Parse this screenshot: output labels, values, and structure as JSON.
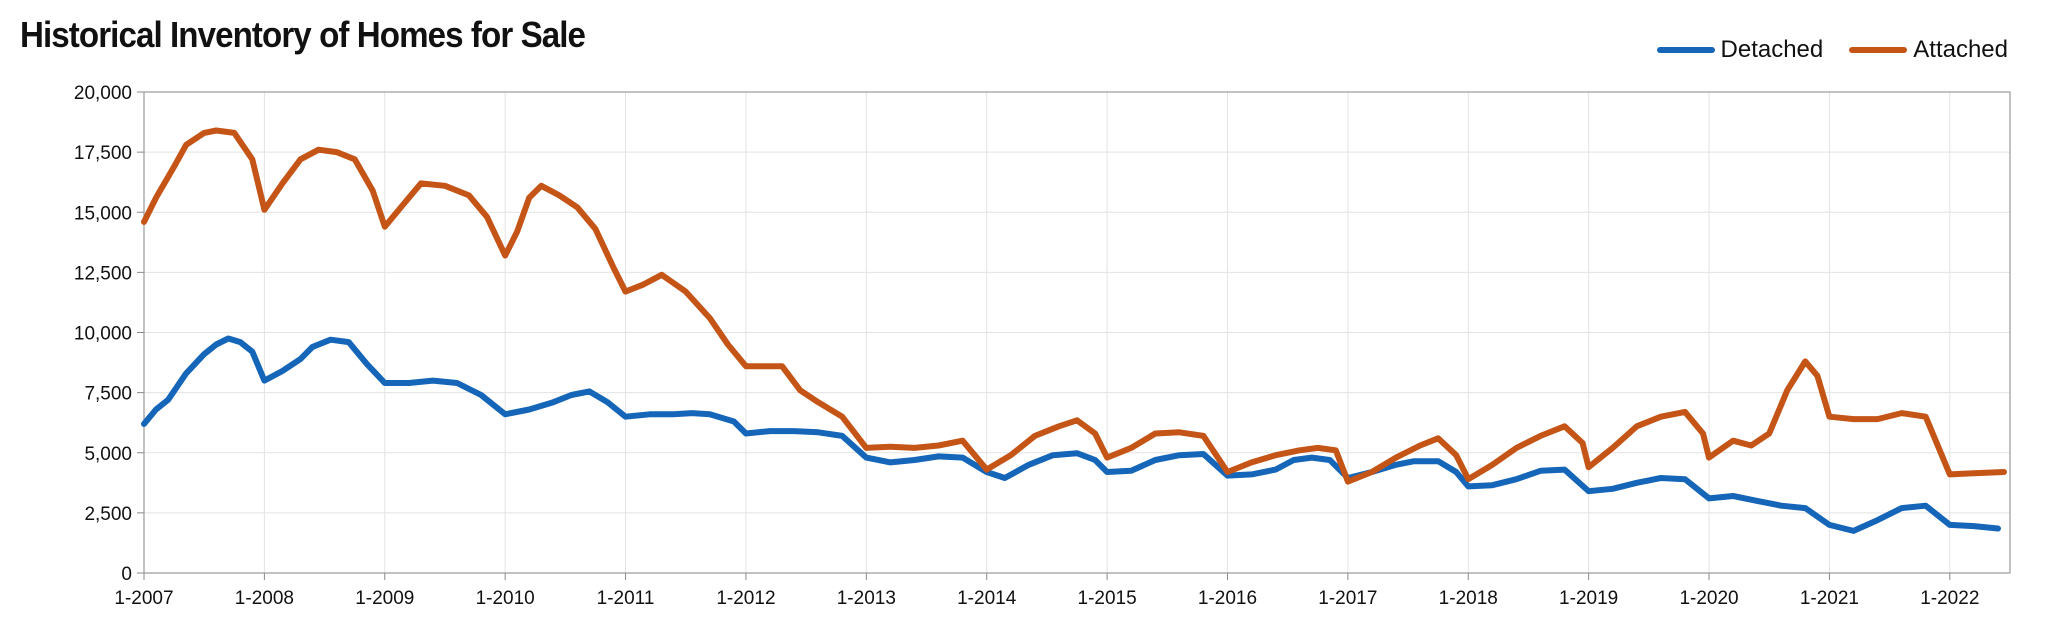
{
  "chart_data": {
    "type": "line",
    "title": "Historical Inventory of Homes for Sale",
    "ylim": [
      0,
      20000
    ],
    "yticks": [
      "0",
      "2,500",
      "5,000",
      "7,500",
      "10,000",
      "12,500",
      "15,000",
      "17,500",
      "20,000"
    ],
    "ytick_values": [
      0,
      2500,
      5000,
      7500,
      10000,
      12500,
      15000,
      17500,
      20000
    ],
    "xlim": [
      2007.0,
      2022.5
    ],
    "xticks": [
      "1-2007",
      "1-2008",
      "1-2009",
      "1-2010",
      "1-2011",
      "1-2012",
      "1-2013",
      "1-2014",
      "1-2015",
      "1-2016",
      "1-2017",
      "1-2018",
      "1-2019",
      "1-2020",
      "1-2021",
      "1-2022"
    ],
    "xtick_values": [
      2007,
      2008,
      2009,
      2010,
      2011,
      2012,
      2013,
      2014,
      2015,
      2016,
      2017,
      2018,
      2019,
      2020,
      2021,
      2022
    ],
    "grid": true,
    "legend_position": "top-right",
    "series": [
      {
        "name": "Detached",
        "color": "#1565b8",
        "points": [
          [
            2007.0,
            6200
          ],
          [
            2007.1,
            6800
          ],
          [
            2007.2,
            7200
          ],
          [
            2007.35,
            8300
          ],
          [
            2007.5,
            9100
          ],
          [
            2007.6,
            9500
          ],
          [
            2007.7,
            9750
          ],
          [
            2007.8,
            9600
          ],
          [
            2007.9,
            9200
          ],
          [
            2008.0,
            8000
          ],
          [
            2008.15,
            8400
          ],
          [
            2008.3,
            8900
          ],
          [
            2008.4,
            9400
          ],
          [
            2008.55,
            9700
          ],
          [
            2008.7,
            9600
          ],
          [
            2008.85,
            8700
          ],
          [
            2009.0,
            7900
          ],
          [
            2009.2,
            7900
          ],
          [
            2009.4,
            8000
          ],
          [
            2009.6,
            7900
          ],
          [
            2009.8,
            7400
          ],
          [
            2010.0,
            6600
          ],
          [
            2010.2,
            6800
          ],
          [
            2010.4,
            7100
          ],
          [
            2010.55,
            7400
          ],
          [
            2010.7,
            7550
          ],
          [
            2010.85,
            7100
          ],
          [
            2011.0,
            6500
          ],
          [
            2011.2,
            6600
          ],
          [
            2011.4,
            6600
          ],
          [
            2011.55,
            6650
          ],
          [
            2011.7,
            6600
          ],
          [
            2011.9,
            6300
          ],
          [
            2012.0,
            5800
          ],
          [
            2012.2,
            5900
          ],
          [
            2012.4,
            5900
          ],
          [
            2012.6,
            5850
          ],
          [
            2012.8,
            5700
          ],
          [
            2013.0,
            4800
          ],
          [
            2013.2,
            4600
          ],
          [
            2013.4,
            4700
          ],
          [
            2013.6,
            4850
          ],
          [
            2013.8,
            4800
          ],
          [
            2014.0,
            4200
          ],
          [
            2014.15,
            3950
          ],
          [
            2014.35,
            4500
          ],
          [
            2014.55,
            4900
          ],
          [
            2014.75,
            4980
          ],
          [
            2014.9,
            4700
          ],
          [
            2015.0,
            4200
          ],
          [
            2015.2,
            4250
          ],
          [
            2015.4,
            4700
          ],
          [
            2015.6,
            4900
          ],
          [
            2015.8,
            4950
          ],
          [
            2016.0,
            4050
          ],
          [
            2016.2,
            4100
          ],
          [
            2016.4,
            4300
          ],
          [
            2016.55,
            4700
          ],
          [
            2016.7,
            4800
          ],
          [
            2016.85,
            4700
          ],
          [
            2017.0,
            3950
          ],
          [
            2017.2,
            4200
          ],
          [
            2017.4,
            4500
          ],
          [
            2017.55,
            4650
          ],
          [
            2017.75,
            4650
          ],
          [
            2017.9,
            4200
          ],
          [
            2018.0,
            3600
          ],
          [
            2018.2,
            3650
          ],
          [
            2018.4,
            3900
          ],
          [
            2018.6,
            4250
          ],
          [
            2018.8,
            4300
          ],
          [
            2019.0,
            3400
          ],
          [
            2019.2,
            3500
          ],
          [
            2019.4,
            3750
          ],
          [
            2019.6,
            3950
          ],
          [
            2019.8,
            3900
          ],
          [
            2020.0,
            3100
          ],
          [
            2020.2,
            3200
          ],
          [
            2020.4,
            3000
          ],
          [
            2020.6,
            2800
          ],
          [
            2020.8,
            2700
          ],
          [
            2021.0,
            2000
          ],
          [
            2021.2,
            1750
          ],
          [
            2021.4,
            2200
          ],
          [
            2021.6,
            2700
          ],
          [
            2021.8,
            2800
          ],
          [
            2022.0,
            2000
          ],
          [
            2022.2,
            1950
          ],
          [
            2022.4,
            1850
          ]
        ]
      },
      {
        "name": "Attached",
        "color": "#c55417",
        "points": [
          [
            2007.0,
            14600
          ],
          [
            2007.1,
            15600
          ],
          [
            2007.25,
            16900
          ],
          [
            2007.35,
            17800
          ],
          [
            2007.5,
            18300
          ],
          [
            2007.6,
            18400
          ],
          [
            2007.75,
            18300
          ],
          [
            2007.9,
            17200
          ],
          [
            2008.0,
            15100
          ],
          [
            2008.15,
            16200
          ],
          [
            2008.3,
            17200
          ],
          [
            2008.45,
            17600
          ],
          [
            2008.6,
            17500
          ],
          [
            2008.75,
            17200
          ],
          [
            2008.9,
            15900
          ],
          [
            2009.0,
            14400
          ],
          [
            2009.15,
            15300
          ],
          [
            2009.3,
            16200
          ],
          [
            2009.5,
            16100
          ],
          [
            2009.7,
            15700
          ],
          [
            2009.85,
            14800
          ],
          [
            2010.0,
            13200
          ],
          [
            2010.1,
            14200
          ],
          [
            2010.2,
            15600
          ],
          [
            2010.3,
            16100
          ],
          [
            2010.45,
            15700
          ],
          [
            2010.6,
            15200
          ],
          [
            2010.75,
            14300
          ],
          [
            2010.9,
            12700
          ],
          [
            2011.0,
            11700
          ],
          [
            2011.15,
            12000
          ],
          [
            2011.3,
            12400
          ],
          [
            2011.5,
            11700
          ],
          [
            2011.7,
            10600
          ],
          [
            2011.85,
            9500
          ],
          [
            2012.0,
            8600
          ],
          [
            2012.15,
            8600
          ],
          [
            2012.3,
            8600
          ],
          [
            2012.45,
            7600
          ],
          [
            2012.6,
            7100
          ],
          [
            2012.8,
            6500
          ],
          [
            2013.0,
            5200
          ],
          [
            2013.2,
            5250
          ],
          [
            2013.4,
            5200
          ],
          [
            2013.6,
            5300
          ],
          [
            2013.8,
            5500
          ],
          [
            2014.0,
            4300
          ],
          [
            2014.2,
            4900
          ],
          [
            2014.4,
            5700
          ],
          [
            2014.6,
            6100
          ],
          [
            2014.75,
            6350
          ],
          [
            2014.9,
            5800
          ],
          [
            2015.0,
            4800
          ],
          [
            2015.2,
            5200
          ],
          [
            2015.4,
            5800
          ],
          [
            2015.6,
            5850
          ],
          [
            2015.8,
            5700
          ],
          [
            2016.0,
            4200
          ],
          [
            2016.2,
            4600
          ],
          [
            2016.4,
            4900
          ],
          [
            2016.6,
            5100
          ],
          [
            2016.75,
            5200
          ],
          [
            2016.9,
            5100
          ],
          [
            2017.0,
            3800
          ],
          [
            2017.2,
            4200
          ],
          [
            2017.4,
            4800
          ],
          [
            2017.6,
            5300
          ],
          [
            2017.75,
            5600
          ],
          [
            2017.9,
            4900
          ],
          [
            2018.0,
            3900
          ],
          [
            2018.2,
            4500
          ],
          [
            2018.4,
            5200
          ],
          [
            2018.6,
            5700
          ],
          [
            2018.8,
            6100
          ],
          [
            2018.95,
            5400
          ],
          [
            2019.0,
            4400
          ],
          [
            2019.2,
            5200
          ],
          [
            2019.4,
            6100
          ],
          [
            2019.6,
            6500
          ],
          [
            2019.8,
            6700
          ],
          [
            2019.95,
            5800
          ],
          [
            2020.0,
            4800
          ],
          [
            2020.2,
            5500
          ],
          [
            2020.35,
            5300
          ],
          [
            2020.5,
            5800
          ],
          [
            2020.65,
            7600
          ],
          [
            2020.8,
            8800
          ],
          [
            2020.9,
            8200
          ],
          [
            2021.0,
            6500
          ],
          [
            2021.2,
            6400
          ],
          [
            2021.4,
            6400
          ],
          [
            2021.6,
            6650
          ],
          [
            2021.8,
            6500
          ],
          [
            2022.0,
            4100
          ],
          [
            2022.2,
            4150
          ],
          [
            2022.45,
            4200
          ]
        ]
      }
    ]
  }
}
